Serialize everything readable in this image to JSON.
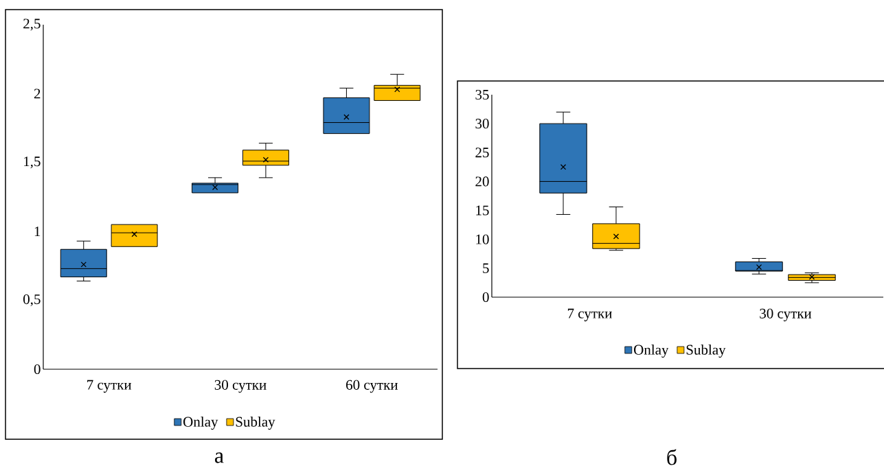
{
  "chart_data": [
    {
      "type": "box",
      "categories": [
        "7 сутки",
        "30 сутки",
        "60 сутки"
      ],
      "series": [
        {
          "name": "Onlay",
          "color": "#2e75b6",
          "boxes": [
            {
              "low": 0.64,
              "q1": 0.67,
              "median": 0.73,
              "q3": 0.87,
              "high": 0.93,
              "mean": 0.76
            },
            {
              "low": 1.28,
              "q1": 1.28,
              "median": 1.34,
              "q3": 1.35,
              "high": 1.39,
              "mean": 1.32
            },
            {
              "low": 1.71,
              "q1": 1.71,
              "median": 1.79,
              "q3": 1.97,
              "high": 2.04,
              "mean": 1.83
            }
          ]
        },
        {
          "name": "Sublay",
          "color": "#ffc000",
          "boxes": [
            {
              "low": 0.89,
              "q1": 0.89,
              "median": 0.99,
              "q3": 1.05,
              "high": 1.05,
              "mean": 0.98
            },
            {
              "low": 1.39,
              "q1": 1.48,
              "median": 1.51,
              "q3": 1.59,
              "high": 1.64,
              "mean": 1.52
            },
            {
              "low": 1.95,
              "q1": 1.95,
              "median": 2.04,
              "q3": 2.06,
              "high": 2.14,
              "mean": 2.03
            }
          ]
        }
      ],
      "ylim": [
        0,
        2.5
      ],
      "yticks": [
        0,
        {
          "value": 0.5,
          "label": "0,5"
        },
        1,
        {
          "value": 1.5,
          "label": "1,5"
        },
        2,
        {
          "value": 2.5,
          "label": "2,5"
        }
      ],
      "legend": "bottom",
      "annotations": [
        "а"
      ]
    },
    {
      "type": "box",
      "categories": [
        "7 сутки",
        "30 сутки"
      ],
      "series": [
        {
          "name": "Onlay",
          "color": "#2e75b6",
          "boxes": [
            {
              "low": 14.3,
              "q1": 18,
              "median": 20,
              "q3": 30,
              "high": 32,
              "mean": 22.5
            },
            {
              "low": 4.0,
              "q1": 4.5,
              "median": 4.6,
              "q3": 6.1,
              "high": 6.7,
              "mean": 5.2
            }
          ]
        },
        {
          "name": "Sublay",
          "color": "#ffc000",
          "boxes": [
            {
              "low": 8.1,
              "q1": 8.4,
              "median": 9.3,
              "q3": 12.7,
              "high": 15.6,
              "mean": 10.5
            },
            {
              "low": 2.5,
              "q1": 2.9,
              "median": 3.4,
              "q3": 3.9,
              "high": 4.2,
              "mean": 3.5
            }
          ]
        }
      ],
      "ylim": [
        0,
        35
      ],
      "yticks": [
        0,
        5,
        10,
        15,
        20,
        25,
        30,
        35
      ],
      "legend": "bottom",
      "annotations": [
        "б"
      ]
    }
  ]
}
